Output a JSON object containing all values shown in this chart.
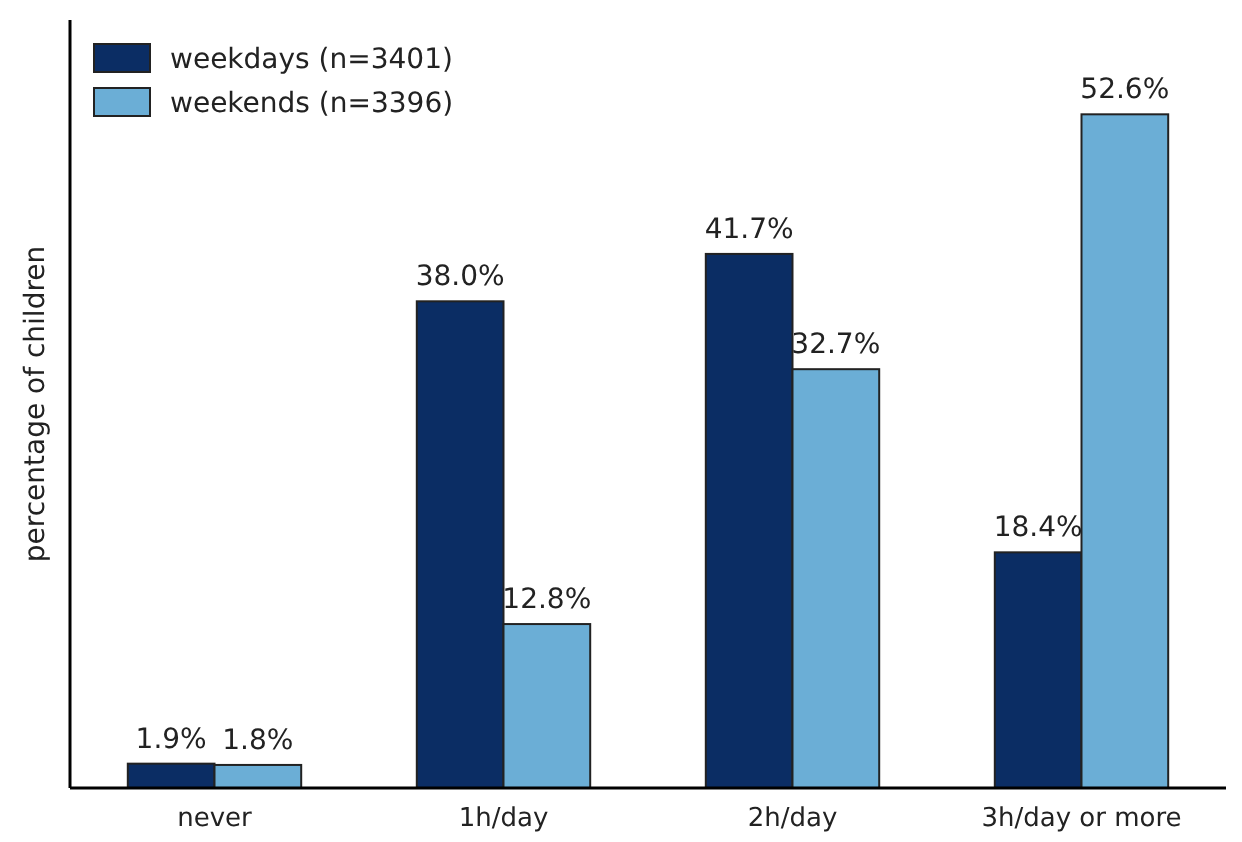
{
  "chart_data": {
    "type": "bar",
    "ylabel": "percentage of children",
    "categories": [
      "never",
      "1h/day",
      "2h/day",
      "3h/day or more"
    ],
    "series": [
      {
        "name": "weekdays (n=3401)",
        "color": "#0b2d64",
        "values": [
          1.9,
          38.0,
          41.7,
          18.4
        ],
        "value_labels": [
          "1.9%",
          "38.0%",
          "41.7%",
          "18.4%"
        ]
      },
      {
        "name": "weekends (n=3396)",
        "color": "#6baed6",
        "values": [
          1.8,
          12.8,
          32.7,
          52.6
        ],
        "value_labels": [
          "1.8%",
          "12.8%",
          "32.7%",
          "52.6%"
        ]
      }
    ],
    "legend": "top left"
  }
}
